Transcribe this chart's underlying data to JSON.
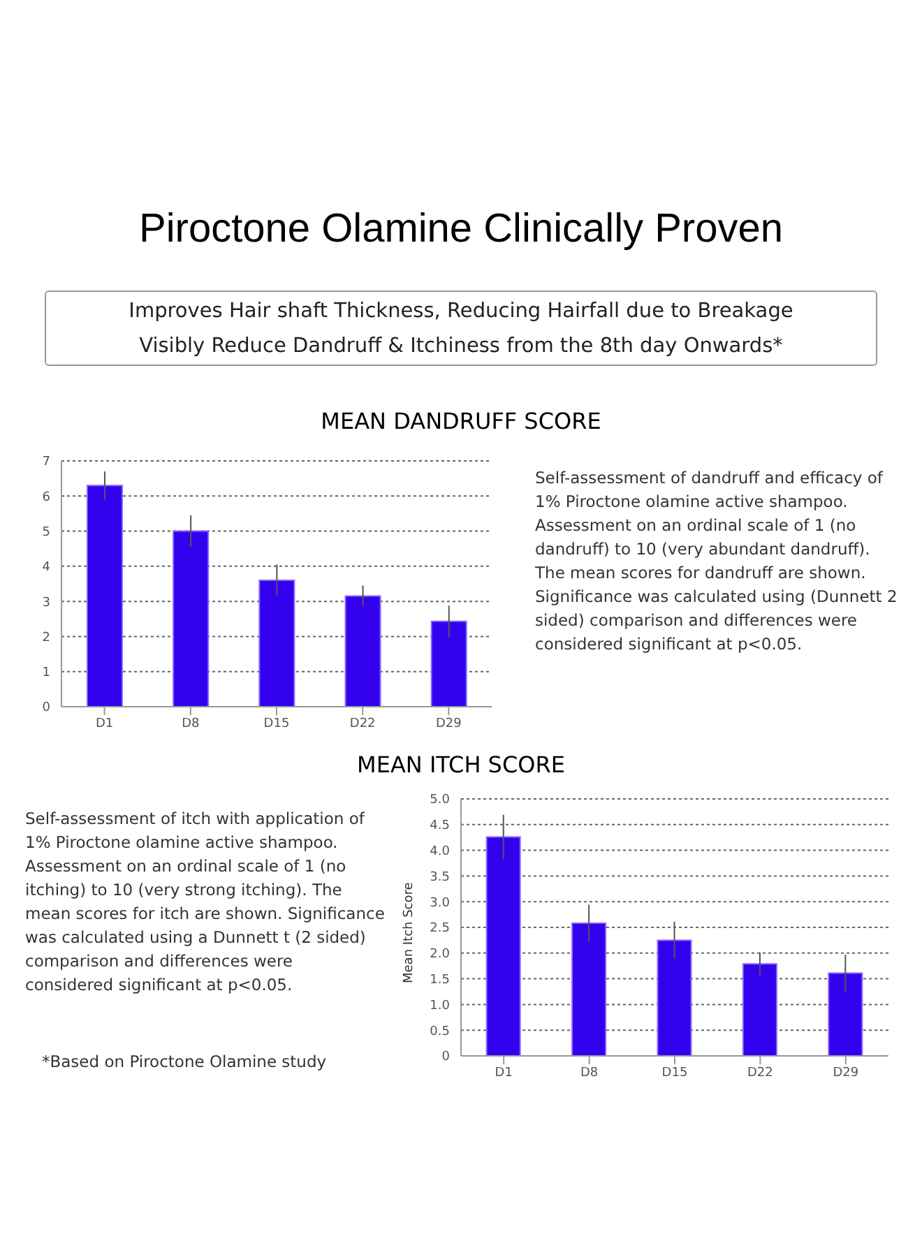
{
  "chart_data": [
    {
      "type": "bar",
      "title": "MEAN DANDRUFF SCORE",
      "categories": [
        "D1",
        "D8",
        "D15",
        "D22",
        "D29"
      ],
      "values": [
        6.3,
        5.0,
        3.6,
        3.15,
        2.43
      ],
      "errors": [
        0.4,
        0.45,
        0.45,
        0.3,
        0.45
      ],
      "color": "#3300ee",
      "ylim": [
        0,
        7
      ],
      "yticks": [
        0,
        1,
        2,
        3,
        4,
        5,
        6,
        7
      ],
      "grid": "y",
      "annotations": [
        "Piroctone Olamine Clinically Proven",
        "Improves Hair shaft Thickness, Reducing Hairfall due to Breakage",
        "Visibly Reduce Dandruff & Itchiness from the 8th day Onwards*",
        "Self-assessment of dandruff and efficacy of 1% Piroctone olamine active shampoo. Assessment on an ordinal scale of 1 (no dandruff) to 10 (very abundant dandruff). The mean scores for dandruff are shown. Significance was calculated using (Dunnett 2 sided) comparison and differences were considered significant at p<0.05."
      ]
    },
    {
      "type": "bar",
      "title": "MEAN ITCH SCORE",
      "ylabel": "Mean Itch Score",
      "categories": [
        "D1",
        "D8",
        "D15",
        "D22",
        "D29"
      ],
      "values": [
        4.26,
        2.58,
        2.25,
        1.79,
        1.61
      ],
      "errors": [
        0.43,
        0.36,
        0.36,
        0.22,
        0.36
      ],
      "color": "#3300ee",
      "ylim": [
        0,
        5
      ],
      "yticks": [
        0,
        0.5,
        {
          "value": 1,
          "label": "1.0"
        },
        1.5,
        {
          "value": 2,
          "label": "2.0"
        },
        2.5,
        {
          "value": 3,
          "label": "3.0"
        },
        3.5,
        {
          "value": 4,
          "label": "4.0"
        },
        4.5,
        {
          "value": 5,
          "label": "5.0"
        }
      ],
      "grid": "y",
      "annotations": [
        "Self-assessment of itch with application of 1% Piroctone olamine active shampoo. Assessment on an ordinal scale of 1 (no itching) to 10 (very strong itching). The mean scores for itch are shown. Significance was calculated using a Dunnett t (2 sided) comparison and differences were considered significant at p<0.05.",
        "*Based on Piroctone Olamine study"
      ]
    }
  ]
}
